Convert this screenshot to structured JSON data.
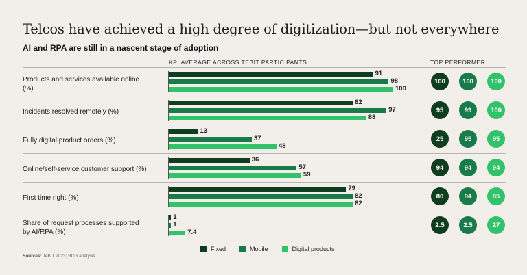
{
  "title": "Telcos have achieved a high degree of digitization—but not everywhere",
  "subtitle": "AI and RPA are still in a nascent stage of adoption",
  "kpi_header": "KPI AVERAGE ACROSS TEBIT PARTICIPANTS",
  "top_header": "TOP PERFORMER",
  "sources_label": "Sources:",
  "sources_text": "TeBIT 2023; BCG analysis.",
  "colors": {
    "fixed": "#0f3d20",
    "mobile": "#197a4a",
    "digital": "#32c26a"
  },
  "chart_data": {
    "type": "bar",
    "orientation": "horizontal",
    "title": "Telcos have achieved a high degree of digitization—but not everywhere",
    "subtitle": "AI and RPA are still in a nascent stage of adoption",
    "xlabel": "KPI AVERAGE ACROSS TEBIT PARTICIPANTS",
    "xlim": [
      0,
      100
    ],
    "categories": [
      "Products and services available online (%)",
      "Incidents resolved remotely (%)",
      "Fully digital product orders (%)",
      "Online/self-service customer support (%)",
      "First time right (%)",
      "Share of request processes supported by AI/RPA (%)"
    ],
    "series": [
      {
        "name": "Fixed",
        "key": "fixed",
        "values": [
          91,
          82,
          13,
          36,
          79,
          1
        ],
        "labels": [
          "91",
          "82",
          "13",
          "36",
          "79",
          "1"
        ],
        "top_performer": [
          "100",
          "95",
          "25",
          "94",
          "80",
          "2.5"
        ]
      },
      {
        "name": "Mobile",
        "key": "mobile",
        "values": [
          98,
          97,
          37,
          57,
          82,
          1
        ],
        "labels": [
          "98",
          "97",
          "37",
          "57",
          "82",
          "1"
        ],
        "top_performer": [
          "100",
          "99",
          "95",
          "94",
          "94",
          "2.5"
        ]
      },
      {
        "name": "Digital products",
        "key": "digital",
        "values": [
          100,
          88,
          48,
          59,
          82,
          7.4
        ],
        "labels": [
          "100",
          "88",
          "48",
          "59",
          "82",
          "7.4"
        ],
        "top_performer": [
          "100",
          "100",
          "95",
          "94",
          "85",
          "27"
        ]
      }
    ],
    "legend": [
      "Fixed",
      "Mobile",
      "Digital products"
    ],
    "legend_position": "bottom"
  }
}
